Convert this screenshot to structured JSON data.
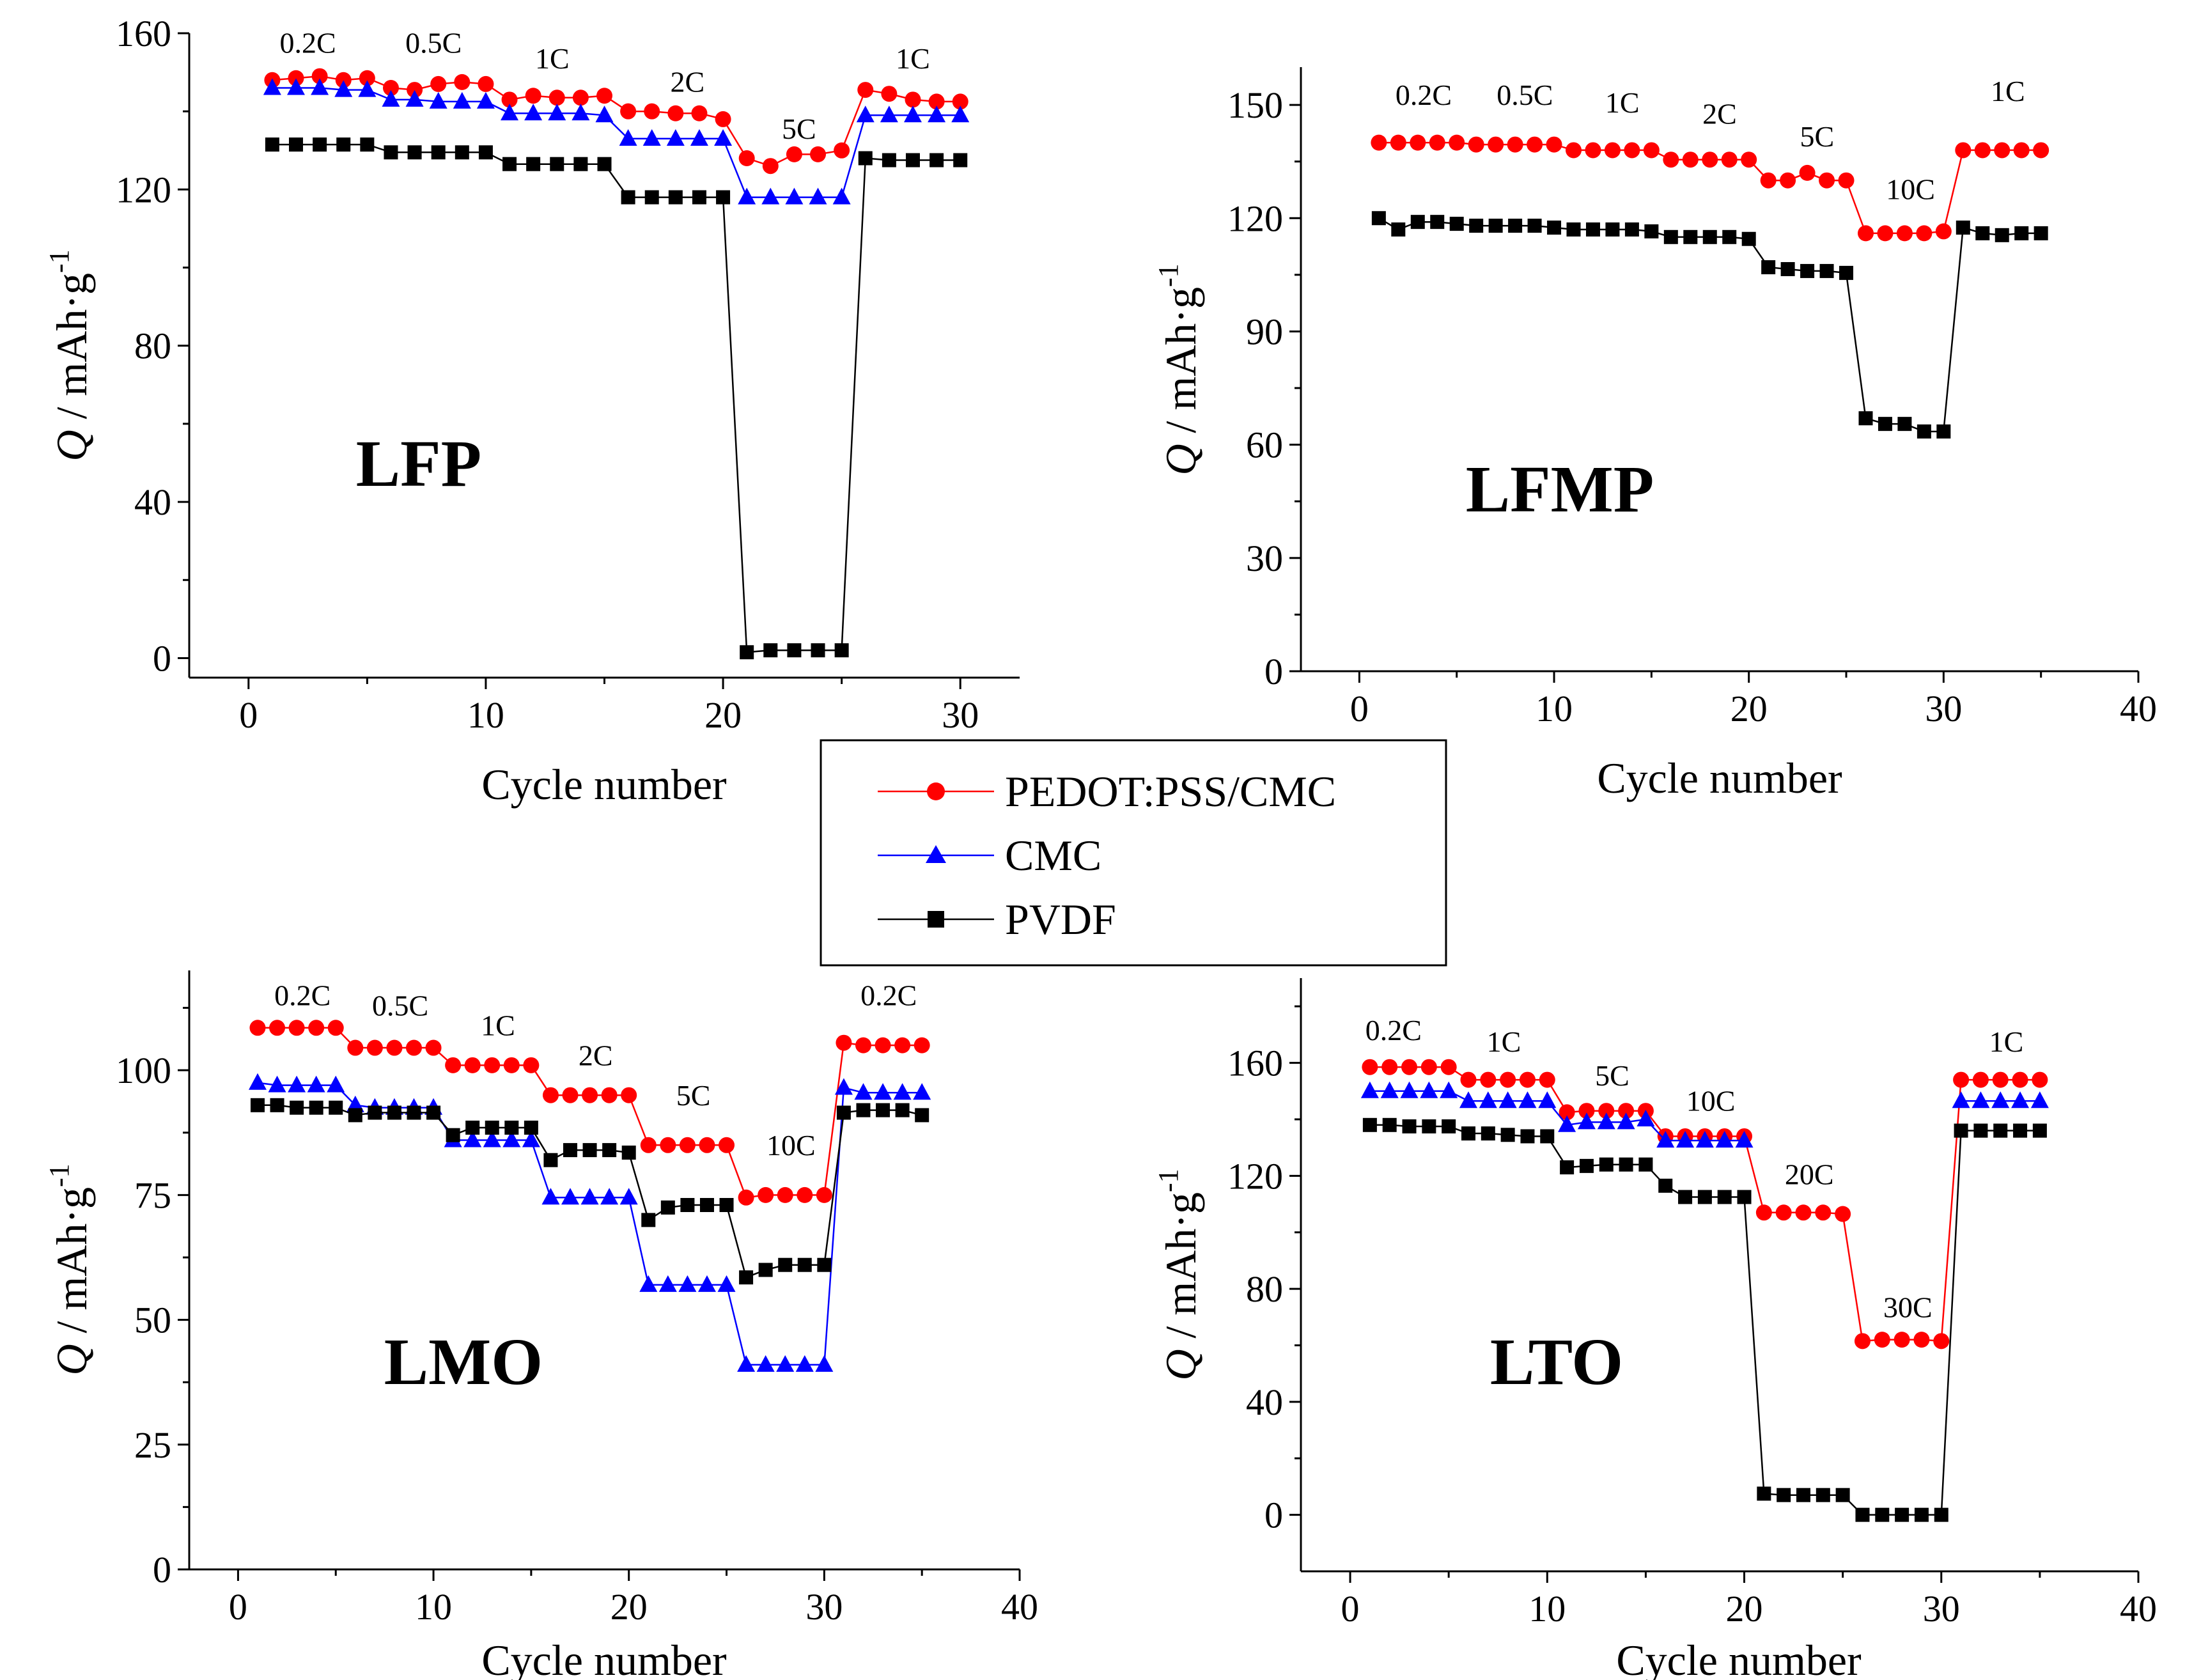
{
  "figure": {
    "legend": [
      {
        "name": "PEDOT:PSS/CMC",
        "color": "#ff0000",
        "marker": "circle"
      },
      {
        "name": "CMC",
        "color": "#0000ff",
        "marker": "triangle"
      },
      {
        "name": "PVDF",
        "color": "#000000",
        "marker": "square"
      }
    ]
  },
  "chart_data": [
    {
      "type": "line",
      "title": "LFP",
      "xlabel": "Cycle number",
      "ylabel_q": "Q",
      "ylabel_unit": " / mAh·g",
      "ylabel_sup": "-1",
      "xlim": [
        -2.5,
        32.5
      ],
      "ylim": [
        -5,
        160
      ],
      "xticks": [
        0,
        10,
        20,
        30
      ],
      "yticks": [
        0,
        40,
        80,
        120,
        160
      ],
      "rate_labels": [
        {
          "text": "0.2C",
          "x": 2.5,
          "y": 155
        },
        {
          "text": "0.5C",
          "x": 7.8,
          "y": 155
        },
        {
          "text": "1C",
          "x": 12.8,
          "y": 151
        },
        {
          "text": "2C",
          "x": 18.5,
          "y": 145
        },
        {
          "text": "5C",
          "x": 23.2,
          "y": 133
        },
        {
          "text": "1C",
          "x": 28.0,
          "y": 151
        }
      ],
      "x": [
        1,
        2,
        3,
        4,
        5,
        6,
        7,
        8,
        9,
        10,
        11,
        12,
        13,
        14,
        15,
        16,
        17,
        18,
        19,
        20,
        21,
        22,
        23,
        24,
        25,
        26,
        27,
        28,
        29,
        30
      ],
      "series": [
        {
          "name": "PEDOT:PSS/CMC",
          "values": [
            148,
            148.5,
            149,
            148,
            148.5,
            146,
            145.5,
            147,
            147.5,
            147,
            143,
            144,
            143.5,
            143.5,
            144,
            140,
            140,
            139.5,
            139.5,
            138,
            128,
            126,
            129,
            129,
            130,
            145.5,
            144.5,
            143,
            142.5,
            142.5
          ]
        },
        {
          "name": "CMC",
          "values": [
            146,
            146,
            146,
            145.5,
            145.5,
            143,
            143,
            142.5,
            142.5,
            142.5,
            139.5,
            139.5,
            139.5,
            139.5,
            139,
            133,
            133,
            133,
            133,
            133,
            118,
            118,
            118,
            118,
            118,
            139,
            139,
            139,
            139,
            139
          ]
        },
        {
          "name": "PVDF",
          "values": [
            131.5,
            131.5,
            131.5,
            131.5,
            131.5,
            129.5,
            129.5,
            129.5,
            129.5,
            129.5,
            126.5,
            126.5,
            126.5,
            126.5,
            126.5,
            118,
            118,
            118,
            118,
            118,
            1.5,
            2,
            2,
            2,
            2,
            128,
            127.5,
            127.5,
            127.5,
            127.5
          ]
        }
      ]
    },
    {
      "type": "line",
      "title": "LFMP",
      "xlabel": "Cycle number",
      "ylabel_q": "Q",
      "ylabel_unit": " / mAh·g",
      "ylabel_sup": "-1",
      "xlim": [
        -3,
        40
      ],
      "ylim": [
        0,
        160
      ],
      "xticks": [
        0,
        10,
        20,
        30,
        40
      ],
      "yticks": [
        0,
        30,
        60,
        90,
        120,
        150
      ],
      "rate_labels": [
        {
          "text": "0.2C",
          "x": 3.3,
          "y": 150
        },
        {
          "text": "0.5C",
          "x": 8.5,
          "y": 150
        },
        {
          "text": "1C",
          "x": 13.5,
          "y": 148
        },
        {
          "text": "2C",
          "x": 18.5,
          "y": 145
        },
        {
          "text": "5C",
          "x": 23.5,
          "y": 139
        },
        {
          "text": "10C",
          "x": 28.3,
          "y": 125
        },
        {
          "text": "1C",
          "x": 33.3,
          "y": 151
        }
      ],
      "x": [
        1,
        2,
        3,
        4,
        5,
        6,
        7,
        8,
        9,
        10,
        11,
        12,
        13,
        14,
        15,
        16,
        17,
        18,
        19,
        20,
        21,
        22,
        23,
        24,
        25,
        26,
        27,
        28,
        29,
        30,
        31,
        32,
        33,
        34,
        35
      ],
      "series": [
        {
          "name": "PEDOT:PSS/CMC",
          "values": [
            140,
            140,
            140,
            140,
            140,
            139.5,
            139.5,
            139.5,
            139.5,
            139.5,
            138,
            138,
            138,
            138,
            138,
            135.5,
            135.5,
            135.5,
            135.5,
            135.5,
            130,
            130,
            132,
            130,
            130,
            116,
            116,
            116,
            116,
            116.5,
            138,
            138,
            138,
            138,
            138
          ]
        },
        {
          "name": "PVDF",
          "values": [
            120,
            117,
            119,
            119,
            118.5,
            118,
            118,
            118,
            118,
            117.5,
            117,
            117,
            117,
            117,
            116.5,
            115,
            115,
            115,
            115,
            114.5,
            107,
            106.5,
            106,
            106,
            105.5,
            67,
            65.5,
            65.5,
            63.5,
            63.5,
            117.5,
            116,
            115.5,
            116,
            116
          ]
        }
      ]
    },
    {
      "type": "line",
      "title": "LMO",
      "xlabel": "Cycle number",
      "ylabel_q": "Q",
      "ylabel_unit": " / mAh·g",
      "ylabel_sup": "-1",
      "xlim": [
        -2.5,
        40
      ],
      "ylim": [
        0,
        120
      ],
      "xticks": [
        0,
        10,
        20,
        30,
        40
      ],
      "yticks": [
        0,
        25,
        50,
        75,
        100
      ],
      "rate_labels": [
        {
          "text": "0.2C",
          "x": 3.3,
          "y": 113
        },
        {
          "text": "0.5C",
          "x": 8.3,
          "y": 111
        },
        {
          "text": "1C",
          "x": 13.3,
          "y": 107
        },
        {
          "text": "2C",
          "x": 18.3,
          "y": 101
        },
        {
          "text": "5C",
          "x": 23.3,
          "y": 93
        },
        {
          "text": "10C",
          "x": 28.3,
          "y": 83
        },
        {
          "text": "0.2C",
          "x": 33.3,
          "y": 113
        }
      ],
      "x": [
        1,
        2,
        3,
        4,
        5,
        6,
        7,
        8,
        9,
        10,
        11,
        12,
        13,
        14,
        15,
        16,
        17,
        18,
        19,
        20,
        21,
        22,
        23,
        24,
        25,
        26,
        27,
        28,
        29,
        30,
        31,
        32,
        33,
        34,
        35
      ],
      "series": [
        {
          "name": "PEDOT:PSS/CMC",
          "values": [
            108.5,
            108.5,
            108.5,
            108.5,
            108.5,
            104.5,
            104.5,
            104.5,
            104.5,
            104.5,
            101,
            101,
            101,
            101,
            101,
            95,
            95,
            95,
            95,
            95,
            85,
            85,
            85,
            85,
            85,
            74.5,
            75,
            75,
            75,
            75,
            105.5,
            105,
            105,
            105,
            105
          ]
        },
        {
          "name": "CMC",
          "values": [
            97.5,
            97,
            97,
            97,
            97,
            93,
            92.5,
            92.5,
            92.5,
            92.5,
            86,
            86,
            86,
            86,
            86,
            74.5,
            74.5,
            74.5,
            74.5,
            74.5,
            57,
            57,
            57,
            57,
            57,
            41,
            41,
            41,
            41,
            41,
            96.5,
            95.5,
            95.5,
            95.5,
            95.5
          ]
        },
        {
          "name": "PVDF",
          "values": [
            93,
            93,
            92.5,
            92.5,
            92.5,
            91,
            91.5,
            91.5,
            91.5,
            91.5,
            87,
            88.5,
            88.5,
            88.5,
            88.5,
            82,
            84,
            84,
            84,
            83.5,
            70,
            72.5,
            73,
            73,
            73,
            58.5,
            60,
            61,
            61,
            61,
            91.5,
            92,
            92,
            92,
            91
          ]
        }
      ]
    },
    {
      "type": "line",
      "title": "LTO",
      "xlabel": "Cycle number",
      "ylabel_q": "Q",
      "ylabel_unit": " / mAh·g",
      "ylabel_sup": "-1",
      "xlim": [
        -2.5,
        40
      ],
      "ylim": [
        -20,
        190
      ],
      "xticks": [
        0,
        10,
        20,
        30,
        40
      ],
      "yticks": [
        0,
        40,
        80,
        120,
        160
      ],
      "rate_labels": [
        {
          "text": "0.2C",
          "x": 2.2,
          "y": 168
        },
        {
          "text": "1C",
          "x": 7.8,
          "y": 164
        },
        {
          "text": "5C",
          "x": 13.3,
          "y": 152
        },
        {
          "text": "10C",
          "x": 18.3,
          "y": 143
        },
        {
          "text": "20C",
          "x": 23.3,
          "y": 117
        },
        {
          "text": "30C",
          "x": 28.3,
          "y": 70
        },
        {
          "text": "1C",
          "x": 33.3,
          "y": 164
        }
      ],
      "x": [
        1,
        2,
        3,
        4,
        5,
        6,
        7,
        8,
        9,
        10,
        11,
        12,
        13,
        14,
        15,
        16,
        17,
        18,
        19,
        20,
        21,
        22,
        23,
        24,
        25,
        26,
        27,
        28,
        29,
        30,
        31,
        32,
        33,
        34,
        35
      ],
      "series": [
        {
          "name": "PEDOT:PSS/CMC",
          "values": [
            158.5,
            158.5,
            158.5,
            158.5,
            158.5,
            154,
            154,
            154,
            154,
            154,
            142.5,
            143,
            143,
            143,
            143,
            134,
            134,
            134,
            134,
            134,
            107,
            107,
            107,
            107,
            106.5,
            61.5,
            62,
            62,
            62,
            61.5,
            154,
            154,
            154,
            154,
            154
          ]
        },
        {
          "name": "CMC",
          "values": [
            150,
            150,
            150,
            150,
            150,
            146.5,
            146.5,
            146.5,
            146.5,
            146.5,
            138,
            139,
            139,
            139,
            140,
            132.5,
            132.5,
            132.5,
            132.5,
            132.5,
            null,
            null,
            null,
            null,
            null,
            null,
            null,
            null,
            null,
            null,
            146.5,
            146.5,
            146.5,
            146.5,
            146.5
          ]
        },
        {
          "name": "PVDF",
          "values": [
            138,
            138,
            137.5,
            137.5,
            137.5,
            135,
            135,
            134.5,
            134,
            134,
            123,
            123.5,
            124,
            124,
            124,
            116.5,
            112.5,
            112.5,
            112.5,
            112.5,
            7.5,
            7,
            7,
            7,
            7,
            0,
            0,
            0,
            0,
            0,
            136,
            136,
            136,
            136,
            136
          ]
        }
      ]
    }
  ]
}
